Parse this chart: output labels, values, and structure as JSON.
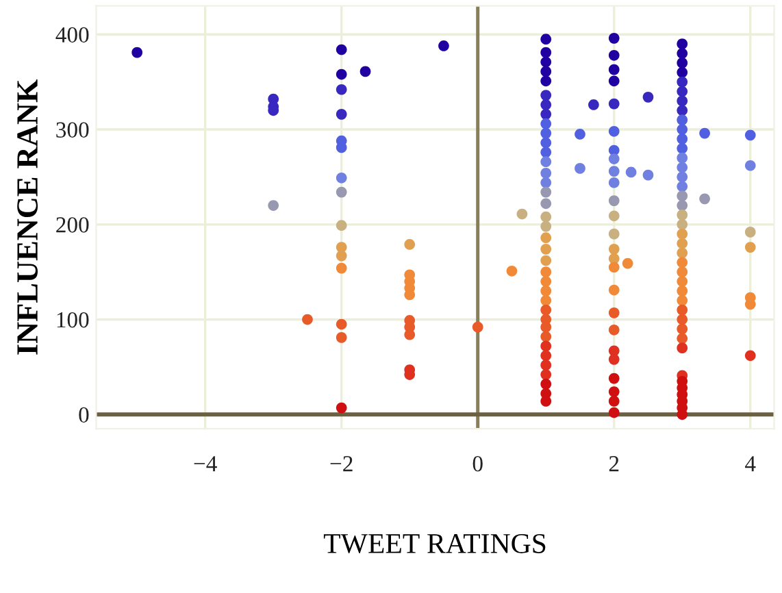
{
  "chart_data": {
    "type": "scatter",
    "xlabel": "TWEET RATINGS",
    "ylabel": "INFLUENCE RANK",
    "xlim": [
      -5.6,
      4.35
    ],
    "ylim": [
      -15,
      430
    ],
    "xticks": [
      {
        "value": -4,
        "label": "−4"
      },
      {
        "value": -2,
        "label": "−2"
      },
      0,
      2,
      4
    ],
    "yticks": [
      0,
      100,
      200,
      300,
      400
    ],
    "grid": true,
    "marker": "circle",
    "ref_lines": [
      {
        "axis": "x",
        "value": 0,
        "color": "#8a7e58"
      },
      {
        "axis": "y",
        "value": 0,
        "color": "#6b6040"
      }
    ],
    "series": [
      {
        "x": [
          -5,
          -3,
          -3,
          -3,
          -3,
          -2,
          -2,
          -2,
          -2,
          -2,
          -2,
          -2,
          -2,
          -2,
          -2,
          -2,
          -2,
          -2,
          -2,
          -2,
          -1.65,
          -0.5,
          -2.5,
          -1,
          -1,
          -1,
          -1,
          -1,
          -1,
          -1,
          -1,
          -1,
          -1,
          0,
          0.5,
          0.65,
          1,
          1,
          1,
          1,
          1,
          1,
          1,
          1,
          1,
          1,
          1,
          1,
          1,
          1,
          1,
          1,
          1,
          1,
          1,
          1,
          1,
          1,
          1,
          1,
          1,
          1,
          1,
          1,
          1,
          1,
          1,
          1,
          1,
          1,
          1,
          1,
          1,
          1.5,
          1.5,
          1.7,
          2,
          2,
          2,
          2,
          2,
          2,
          2,
          2,
          2,
          2,
          2,
          2,
          2,
          2,
          2,
          2,
          2,
          2,
          2,
          2,
          2,
          2,
          2,
          2,
          2,
          2.2,
          2.25,
          2.5,
          2.5,
          3,
          3,
          3,
          3,
          3,
          3,
          3,
          3,
          3,
          3,
          3,
          3,
          3,
          3,
          3,
          3,
          3,
          3,
          3,
          3,
          3,
          3,
          3,
          3,
          3,
          3,
          3,
          3,
          3,
          3,
          3,
          3,
          3,
          3,
          3,
          3,
          3,
          3,
          3,
          3,
          3.33,
          3.33,
          4,
          4,
          4,
          4,
          4,
          4,
          4
        ],
        "values": [
          381,
          332,
          324,
          320,
          220,
          384,
          358,
          342,
          316,
          288,
          281,
          249,
          234,
          199,
          176,
          167,
          154,
          95,
          81,
          7,
          361,
          388,
          100,
          179,
          147,
          140,
          133,
          126,
          99,
          92,
          84,
          47,
          42,
          92,
          151,
          211,
          395,
          381,
          371,
          361,
          351,
          336,
          326,
          316,
          306,
          296,
          286,
          276,
          266,
          254,
          244,
          234,
          222,
          208,
          198,
          186,
          174,
          162,
          150,
          140,
          130,
          120,
          110,
          100,
          92,
          82,
          72,
          62,
          52,
          42,
          32,
          22,
          14,
          295,
          259,
          326,
          396,
          378,
          363,
          351,
          327,
          298,
          278,
          269,
          256,
          244,
          225,
          209,
          190,
          174,
          164,
          155,
          131,
          107,
          89,
          67,
          58,
          38,
          24,
          14,
          2,
          159,
          255,
          334,
          252,
          390,
          380,
          370,
          360,
          350,
          340,
          330,
          320,
          310,
          300,
          290,
          280,
          270,
          260,
          250,
          240,
          230,
          220,
          210,
          200,
          190,
          180,
          170,
          160,
          150,
          140,
          130,
          120,
          110,
          100,
          90,
          80,
          70,
          41,
          35,
          28,
          21,
          14,
          7,
          0,
          296,
          227,
          294,
          262,
          192,
          176,
          123,
          116,
          62
        ],
        "colors": [
          "#2000a0",
          "#3828c0",
          "#3828c0",
          "#3828c0",
          "#9898b0",
          "#2000a0",
          "#2000a0",
          "#3828c0",
          "#3828c0",
          "#5060e0",
          "#5060e0",
          "#7080e0",
          "#9898b0",
          "#c8b080",
          "#e0a050",
          "#e0a050",
          "#f08a38",
          "#e85a28",
          "#e85a28",
          "#d01010",
          "#2000a0",
          "#2000a0",
          "#e85a28",
          "#e0a050",
          "#f08a38",
          "#f08a38",
          "#f08a38",
          "#f08a38",
          "#e85a28",
          "#e85a28",
          "#e85a28",
          "#e03020",
          "#e03020",
          "#e85a28",
          "#f08a38",
          "#c8b080",
          "#2000a0",
          "#2000a0",
          "#2000a0",
          "#2000a0",
          "#2000a0",
          "#3828c0",
          "#3828c0",
          "#3828c0",
          "#5060e0",
          "#5060e0",
          "#5060e0",
          "#5060e0",
          "#7080e0",
          "#7080e0",
          "#7080e0",
          "#9898b0",
          "#9898b0",
          "#c8b080",
          "#c8b080",
          "#e0a050",
          "#e0a050",
          "#e0a050",
          "#f08a38",
          "#f08a38",
          "#f08a38",
          "#f08a38",
          "#e85a28",
          "#e85a28",
          "#e85a28",
          "#e85a28",
          "#e03020",
          "#e03020",
          "#e03020",
          "#e03020",
          "#d01010",
          "#d01010",
          "#d01010",
          "#5060e0",
          "#7080e0",
          "#3828c0",
          "#2000a0",
          "#2000a0",
          "#2000a0",
          "#2000a0",
          "#3828c0",
          "#5060e0",
          "#5060e0",
          "#7080e0",
          "#7080e0",
          "#7080e0",
          "#9898b0",
          "#c8b080",
          "#c8b080",
          "#e0a050",
          "#e0a050",
          "#f08a38",
          "#f08a38",
          "#e85a28",
          "#e85a28",
          "#e03020",
          "#e03020",
          "#d01010",
          "#d01010",
          "#d01010",
          "#d01010",
          "#f08a38",
          "#7080e0",
          "#3828c0",
          "#7080e0",
          "#2000a0",
          "#2000a0",
          "#2000a0",
          "#2000a0",
          "#3828c0",
          "#3828c0",
          "#3828c0",
          "#3828c0",
          "#5060e0",
          "#5060e0",
          "#5060e0",
          "#5060e0",
          "#7080e0",
          "#7080e0",
          "#7080e0",
          "#7080e0",
          "#9898b0",
          "#9898b0",
          "#c8b080",
          "#c8b080",
          "#e0a050",
          "#e0a050",
          "#e0a050",
          "#f08a38",
          "#f08a38",
          "#f08a38",
          "#f08a38",
          "#f08a38",
          "#e85a28",
          "#e85a28",
          "#e85a28",
          "#e85a28",
          "#e03020",
          "#e03020",
          "#d01010",
          "#d01010",
          "#d01010",
          "#d01010",
          "#d01010",
          "#d01010",
          "#5060e0",
          "#9898b0",
          "#5060e0",
          "#7080e0",
          "#c8b080",
          "#e0a050",
          "#f08a38",
          "#f08a38",
          "#e03020"
        ]
      }
    ]
  }
}
